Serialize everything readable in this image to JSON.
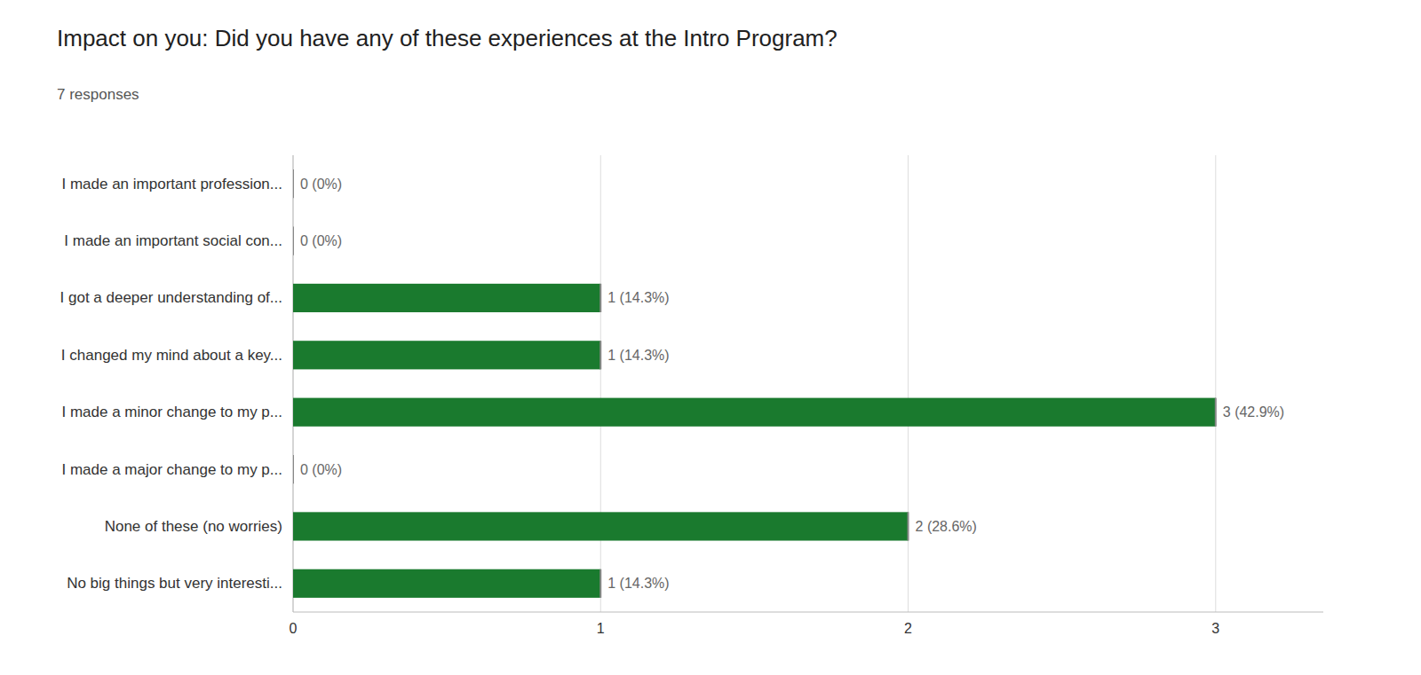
{
  "chart_data": {
    "type": "bar",
    "orientation": "horizontal",
    "title": "Impact on you: Did you have any of these experiences at the Intro Program?",
    "subtitle": "7 responses",
    "categories": [
      "I made an important profession...",
      "I made an important social con...",
      "I got a deeper understanding of...",
      "I changed my mind about a key...",
      "I made a minor change to my p...",
      "I made a major change to my p...",
      "None of these (no worries)",
      "No big things but very interesti..."
    ],
    "values": [
      0,
      0,
      1,
      1,
      3,
      0,
      2,
      1
    ],
    "value_labels": [
      "0 (0%)",
      "0 (0%)",
      "1 (14.3%)",
      "1 (14.3%)",
      "3 (42.9%)",
      "0 (0%)",
      "2 (28.6%)",
      "1 (14.3%)"
    ],
    "data_labels": true,
    "color": "#1a7a2e",
    "xlim": [
      0,
      3.35
    ],
    "xticks": [
      0,
      1,
      2,
      3
    ],
    "grid": true
  }
}
